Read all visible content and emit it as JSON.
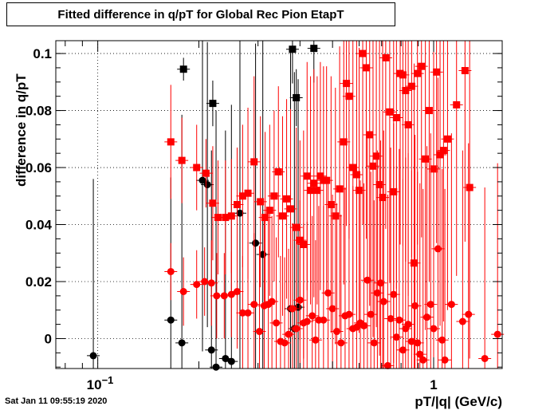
{
  "chart_data": {
    "type": "scatter",
    "title": "Fitted difference in q/pT for Global Rec Pion EtapT",
    "xlabel": "pT/|q| (GeV/c)",
    "ylabel": "difference in q/pT",
    "xscale": "log",
    "xlim": [
      0.075,
      1.6
    ],
    "ylim": [
      -0.0105,
      0.1045
    ],
    "y_ticks": [
      0,
      0.02,
      0.04,
      0.06,
      0.08,
      0.1
    ],
    "y_tick_labels": [
      "0",
      "0.02",
      "0.04",
      "0.06",
      "0.08",
      "0.1"
    ],
    "x_tick_labels": [
      {
        "value": 0.1,
        "label": "10",
        "exp": "−1"
      },
      {
        "value": 1.0,
        "label": "1",
        "exp": ""
      }
    ],
    "grid": true,
    "timestamp": "Sat Jan 11 09:55:19 2020",
    "series": [
      {
        "marker": "square",
        "color": "#000000",
        "points": [
          [
            0.18,
            0.0945,
            0.004
          ],
          [
            0.22,
            0.0825,
            0.008
          ],
          [
            0.38,
            0.1015,
            0.012
          ],
          [
            0.39,
            0.0845,
            0.01
          ],
          [
            0.44,
            0.1018,
            0.012
          ]
        ]
      },
      {
        "marker": "circle",
        "color": "#000000",
        "points": [
          [
            0.097,
            -0.006,
            0.062
          ],
          [
            0.165,
            0.0065,
            0.05
          ],
          [
            0.178,
            -0.0015,
            0.08
          ],
          [
            0.205,
            0.0555,
            0.06
          ],
          [
            0.212,
            0.054,
            0.05
          ],
          [
            0.218,
            -0.004,
            0.07
          ],
          [
            0.225,
            -0.01,
            0.09
          ],
          [
            0.24,
            -0.007,
            0.08
          ],
          [
            0.25,
            -0.008,
            0.09
          ],
          [
            0.265,
            0.044,
            0.09
          ],
          [
            0.295,
            0.0335,
            0.07
          ],
          [
            0.31,
            0.0295,
            0.08
          ],
          [
            0.375,
            0.0105,
            0.09
          ],
          [
            0.385,
            0.0035,
            0.09
          ],
          [
            0.395,
            0.011,
            0.08
          ]
        ]
      },
      {
        "marker": "square",
        "color": "#ff0000",
        "points": [
          [
            0.165,
            0.069,
            0.02
          ],
          [
            0.178,
            0.0625,
            0.015
          ],
          [
            0.197,
            0.06,
            0.015
          ],
          [
            0.21,
            0.058,
            0.012
          ],
          [
            0.22,
            0.0475,
            0.02
          ],
          [
            0.228,
            0.0425,
            0.02
          ],
          [
            0.24,
            0.0425,
            0.02
          ],
          [
            0.25,
            0.043,
            0.02
          ],
          [
            0.26,
            0.047,
            0.02
          ],
          [
            0.27,
            0.05,
            0.025
          ],
          [
            0.28,
            0.051,
            0.03
          ],
          [
            0.292,
            0.062,
            0.03
          ],
          [
            0.305,
            0.048,
            0.03
          ],
          [
            0.315,
            0.0425,
            0.03
          ],
          [
            0.325,
            0.045,
            0.03
          ],
          [
            0.335,
            0.05,
            0.03
          ],
          [
            0.345,
            0.0585,
            0.03
          ],
          [
            0.355,
            0.043,
            0.035
          ],
          [
            0.365,
            0.049,
            0.035
          ],
          [
            0.375,
            0.0455,
            0.035
          ],
          [
            0.39,
            0.039,
            0.035
          ],
          [
            0.4,
            0.0345,
            0.035
          ],
          [
            0.41,
            0.033,
            0.04
          ],
          [
            0.42,
            0.057,
            0.04
          ],
          [
            0.43,
            0.052,
            0.04
          ],
          [
            0.44,
            0.0545,
            0.04
          ],
          [
            0.45,
            0.052,
            0.04
          ],
          [
            0.46,
            0.057,
            0.04
          ],
          [
            0.47,
            0.0555,
            0.04
          ],
          [
            0.48,
            0.0555,
            0.04
          ],
          [
            0.495,
            0.047,
            0.045
          ],
          [
            0.51,
            0.043,
            0.045
          ],
          [
            0.525,
            0.0525,
            0.05
          ],
          [
            0.54,
            0.069,
            0.05
          ],
          [
            0.55,
            0.0895,
            0.05
          ],
          [
            0.56,
            0.085,
            0.05
          ],
          [
            0.575,
            0.06,
            0.05
          ],
          [
            0.59,
            0.0575,
            0.05
          ],
          [
            0.6,
            0.052,
            0.05
          ],
          [
            0.615,
            0.1,
            0.06
          ],
          [
            0.63,
            0.095,
            0.06
          ],
          [
            0.645,
            0.0715,
            0.06
          ],
          [
            0.66,
            0.0605,
            0.06
          ],
          [
            0.675,
            0.064,
            0.06
          ],
          [
            0.69,
            0.054,
            0.06
          ],
          [
            0.705,
            0.0495,
            0.06
          ],
          [
            0.72,
            0.0985,
            0.06
          ],
          [
            0.74,
            0.0795,
            0.06
          ],
          [
            0.76,
            0.0515,
            0.06
          ],
          [
            0.775,
            0.0775,
            0.06
          ],
          [
            0.795,
            0.093,
            0.06
          ],
          [
            0.81,
            0.0925,
            0.06
          ],
          [
            0.825,
            0.087,
            0.06
          ],
          [
            0.84,
            0.075,
            0.06
          ],
          [
            0.86,
            0.0885,
            0.06
          ],
          [
            0.875,
            0.0265,
            0.07
          ],
          [
            0.895,
            0.093,
            0.06
          ],
          [
            0.92,
            0.0955,
            0.06
          ],
          [
            0.945,
            0.063,
            0.06
          ],
          [
            0.97,
            0.08,
            0.06
          ],
          [
            1.0,
            0.0595,
            0.06
          ],
          [
            1.02,
            0.0935,
            0.06
          ],
          [
            1.045,
            0.0645,
            0.06
          ],
          [
            1.07,
            0.066,
            0.06
          ],
          [
            1.1,
            0.07,
            0.06
          ],
          [
            1.17,
            0.082,
            0.06
          ],
          [
            1.24,
            0.094,
            0.06
          ],
          [
            1.28,
            0.053,
            0.06
          ]
        ]
      },
      {
        "marker": "circle",
        "color": "#ff0000",
        "points": [
          [
            0.165,
            0.0235,
            0.01
          ],
          [
            0.18,
            0.0165,
            0.012
          ],
          [
            0.197,
            0.019,
            0.012
          ],
          [
            0.208,
            0.02,
            0.012
          ],
          [
            0.218,
            0.0195,
            0.015
          ],
          [
            0.226,
            0.015,
            0.015
          ],
          [
            0.238,
            0.015,
            0.015
          ],
          [
            0.25,
            0.0155,
            0.015
          ],
          [
            0.26,
            0.0165,
            0.02
          ],
          [
            0.27,
            0.009,
            0.02
          ],
          [
            0.28,
            0.009,
            0.025
          ],
          [
            0.292,
            0.012,
            0.025
          ],
          [
            0.303,
            0.0025,
            0.03
          ],
          [
            0.313,
            0.0115,
            0.03
          ],
          [
            0.322,
            0.012,
            0.03
          ],
          [
            0.33,
            0.013,
            0.03
          ],
          [
            0.34,
            0.0055,
            0.03
          ],
          [
            0.35,
            -0.001,
            0.03
          ],
          [
            0.36,
            -0.0015,
            0.03
          ],
          [
            0.37,
            0.0015,
            0.03
          ],
          [
            0.38,
            0.0105,
            0.03
          ],
          [
            0.39,
            0.0035,
            0.03
          ],
          [
            0.4,
            0.0135,
            0.035
          ],
          [
            0.41,
            0.0055,
            0.035
          ],
          [
            0.42,
            0.006,
            0.035
          ],
          [
            0.435,
            0.008,
            0.035
          ],
          [
            0.445,
            -0.0005,
            0.035
          ],
          [
            0.455,
            0.0065,
            0.04
          ],
          [
            0.47,
            0.0065,
            0.04
          ],
          [
            0.485,
            0.016,
            0.04
          ],
          [
            0.5,
            0.0105,
            0.04
          ],
          [
            0.515,
            0.0025,
            0.045
          ],
          [
            0.53,
            -0.0015,
            0.045
          ],
          [
            0.545,
            0.008,
            0.045
          ],
          [
            0.56,
            0.0085,
            0.05
          ],
          [
            0.575,
            0.0035,
            0.05
          ],
          [
            0.59,
            0.004,
            0.05
          ],
          [
            0.605,
            0.0055,
            0.05
          ],
          [
            0.62,
            0.0045,
            0.05
          ],
          [
            0.635,
            0.0205,
            0.05
          ],
          [
            0.65,
            0.0085,
            0.05
          ],
          [
            0.665,
            -0.0015,
            0.05
          ],
          [
            0.68,
            0.016,
            0.05
          ],
          [
            0.695,
            0.0195,
            0.05
          ],
          [
            0.71,
            0.013,
            0.06
          ],
          [
            0.73,
            -0.0095,
            0.06
          ],
          [
            0.745,
            0.007,
            0.06
          ],
          [
            0.76,
            0.0155,
            0.06
          ],
          [
            0.775,
            0.0005,
            0.06
          ],
          [
            0.79,
            0.0065,
            0.06
          ],
          [
            0.81,
            -0.004,
            0.06
          ],
          [
            0.825,
            0.0035,
            0.06
          ],
          [
            0.84,
            0.005,
            0.06
          ],
          [
            0.86,
            -0.001,
            0.06
          ],
          [
            0.88,
            0.0115,
            0.06
          ],
          [
            0.895,
            -0.0015,
            0.06
          ],
          [
            0.91,
            -0.0055,
            0.06
          ],
          [
            0.93,
            -0.0075,
            0.06
          ],
          [
            0.955,
            0.0075,
            0.06
          ],
          [
            0.98,
            0.012,
            0.06
          ],
          [
            1.0,
            0.0035,
            0.06
          ],
          [
            1.03,
            0.0315,
            0.06
          ],
          [
            1.06,
            -0.0005,
            0.06
          ],
          [
            1.08,
            -0.0075,
            0.06
          ],
          [
            1.13,
            0.012,
            0.06
          ],
          [
            1.22,
            0.006,
            0.06
          ],
          [
            1.27,
            0.0085,
            0.06
          ],
          [
            1.42,
            -0.007,
            0.06
          ],
          [
            1.55,
            0.0015,
            0.06
          ]
        ]
      }
    ]
  }
}
